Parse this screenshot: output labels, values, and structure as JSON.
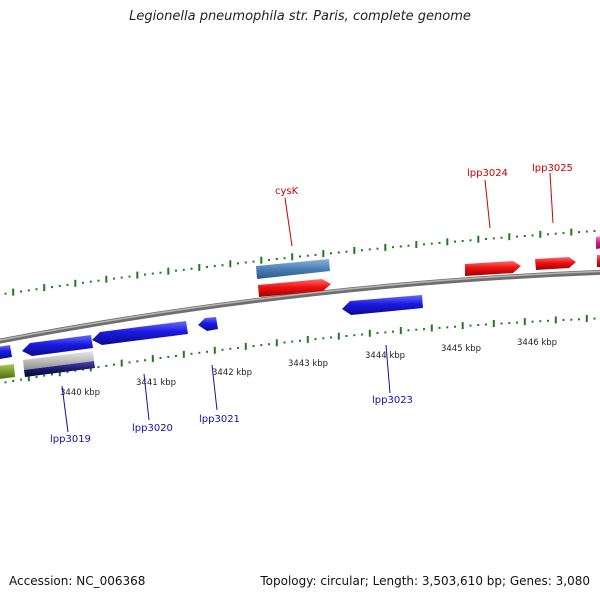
{
  "title": "Legionella pneumophila str. Paris, complete genome",
  "footer": {
    "accession": "Accession: NC_006368",
    "summary": "Topology: circular; Length: 3,503,610 bp; Genes: 3,080"
  },
  "colors": {
    "forward_gene": "#ee1111",
    "reverse_gene": "#1a1ae0",
    "highlight_gene": "#4a7fb5",
    "backbone": "#8a8a8a",
    "tick": "#1f7a1f",
    "forward_label": "#cc0000",
    "reverse_label": "#1010aa",
    "magenta_gene": "#e0148c",
    "olive_gene": "#7a9a2a"
  },
  "scale_labels": [
    "3440 kbp",
    "3441 kbp",
    "3442 kbp",
    "3443 kbp",
    "3444 kbp",
    "3445 kbp",
    "3446 kbp"
  ],
  "forward_labels": [
    "cysK",
    "lpp3024",
    "lpp3025"
  ],
  "reverse_labels": [
    "lpp3019",
    "lpp3020",
    "lpp3021",
    "lpp3023"
  ]
}
